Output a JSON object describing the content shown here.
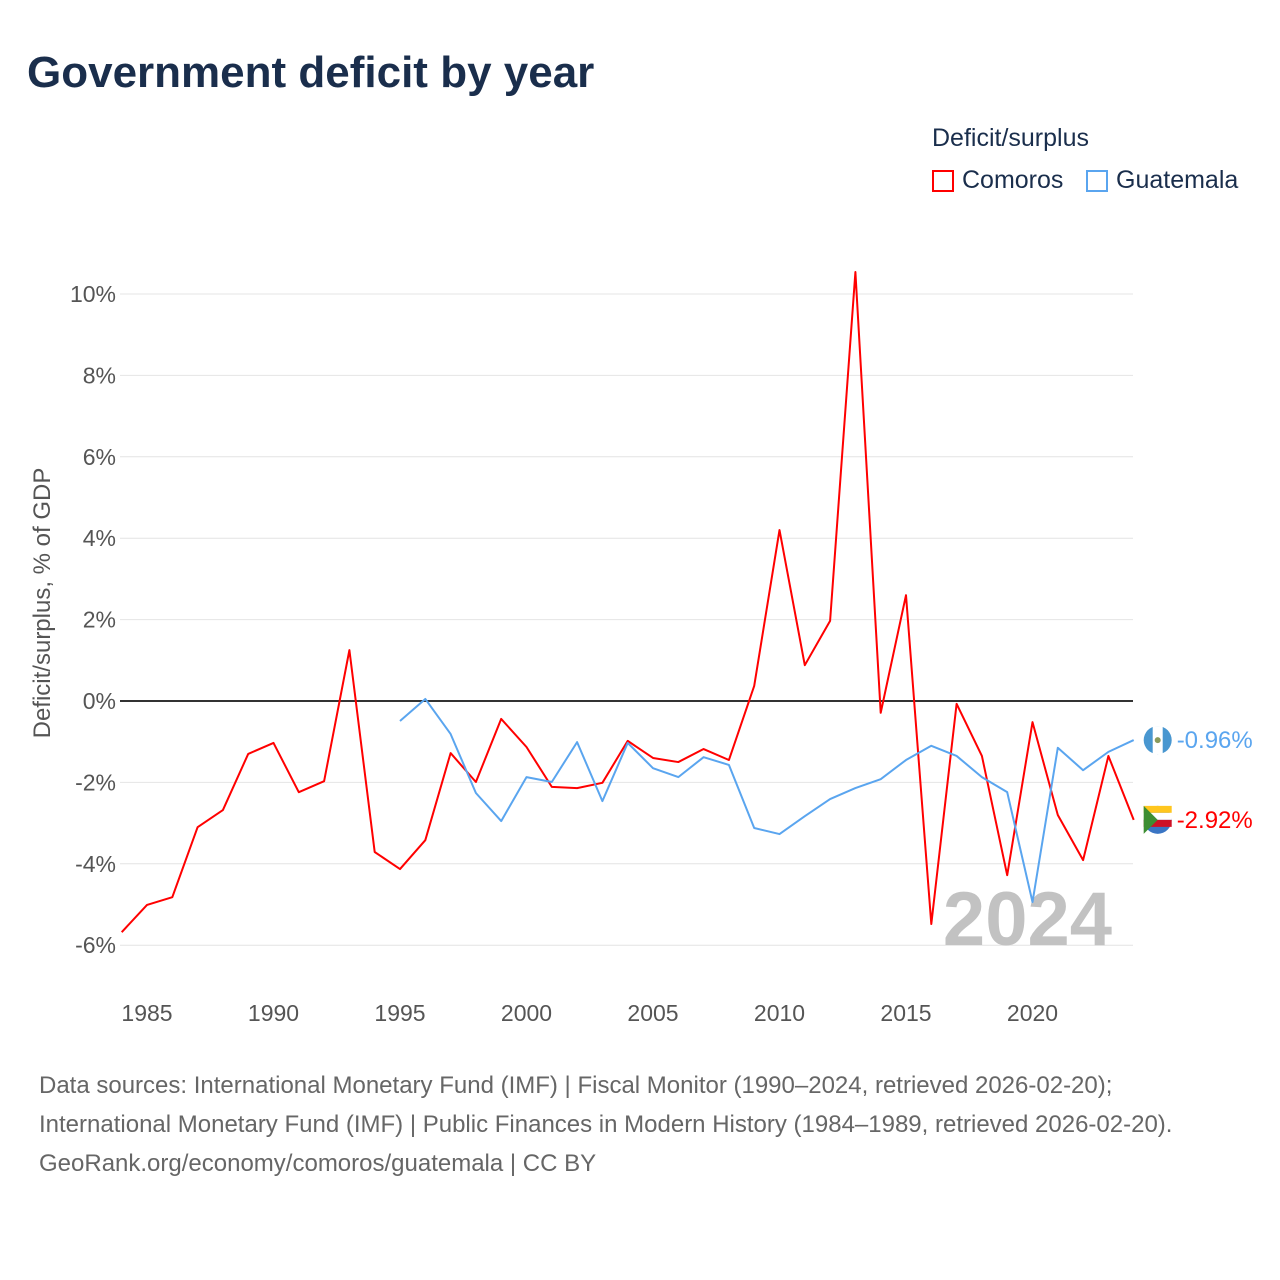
{
  "title": "Government deficit by year",
  "chart_data": {
    "type": "line",
    "title": "Government deficit by year",
    "ylabel": "Deficit/surplus, % of GDP",
    "xlabel": "",
    "legend_title": "Deficit/surplus",
    "legend_position": "top-right",
    "xlim": [
      1984,
      2024
    ],
    "ylim": [
      -7,
      11
    ],
    "x_ticks": [
      1985,
      1990,
      1995,
      2000,
      2005,
      2010,
      2015,
      2020
    ],
    "x_tick_labels": [
      "1985",
      "1990",
      "1995",
      "2000",
      "2005",
      "2010",
      "2015",
      "2020"
    ],
    "y_ticks": [
      -6,
      -4,
      -2,
      0,
      2,
      4,
      6,
      8,
      10
    ],
    "y_tick_labels": [
      "-6%",
      "-4%",
      "-2%",
      "0%",
      "2%",
      "4%",
      "6%",
      "8%",
      "10%"
    ],
    "grid": true,
    "watermark_year": "2024",
    "series": [
      {
        "name": "Comoros",
        "color": "#ff0000",
        "end_label": "-2.92%",
        "x": [
          1984,
          1985,
          1986,
          1987,
          1988,
          1989,
          1990,
          1991,
          1992,
          1993,
          1994,
          1995,
          1996,
          1997,
          1998,
          1999,
          2000,
          2001,
          2002,
          2003,
          2004,
          2005,
          2006,
          2007,
          2008,
          2009,
          2010,
          2011,
          2012,
          2013,
          2014,
          2015,
          2016,
          2017,
          2018,
          2019,
          2020,
          2021,
          2022,
          2023,
          2024
        ],
        "values": [
          -5.68,
          -5.01,
          -4.82,
          -3.1,
          -2.68,
          -1.3,
          -1.03,
          -2.24,
          -1.97,
          1.25,
          -3.71,
          -4.13,
          -3.42,
          -1.28,
          -1.99,
          -0.44,
          -1.13,
          -2.11,
          -2.14,
          -2.01,
          -0.98,
          -1.4,
          -1.5,
          -1.18,
          -1.45,
          0.37,
          4.2,
          0.88,
          1.97,
          10.54,
          -0.29,
          2.6,
          -5.48,
          -0.07,
          -1.35,
          -4.28,
          -0.52,
          -2.8,
          -3.91,
          -1.35,
          -2.92
        ]
      },
      {
        "name": "Guatemala",
        "color": "#5aa5ef",
        "end_label": "-0.96%",
        "x": [
          1995,
          1996,
          1997,
          1998,
          1999,
          2000,
          2001,
          2002,
          2003,
          2004,
          2005,
          2006,
          2007,
          2008,
          2009,
          2010,
          2011,
          2012,
          2013,
          2014,
          2015,
          2016,
          2017,
          2018,
          2019,
          2020,
          2021,
          2022,
          2023,
          2024
        ],
        "values": [
          -0.49,
          0.05,
          -0.81,
          -2.26,
          -2.95,
          -1.87,
          -1.99,
          -1.01,
          -2.46,
          -1.03,
          -1.65,
          -1.87,
          -1.38,
          -1.57,
          -3.12,
          -3.27,
          -2.83,
          -2.41,
          -2.14,
          -1.92,
          -1.45,
          -1.1,
          -1.35,
          -1.87,
          -2.24,
          -4.94,
          -1.15,
          -1.7,
          -1.25,
          -0.96
        ]
      }
    ]
  },
  "footer": {
    "sources": "Data sources: International Monetary Fund (IMF) | Fiscal Monitor (1990–2024, retrieved 2026-02-20); International Monetary Fund (IMF) | Public Finances in Modern History (1984–1989, retrieved 2026-02-20).",
    "credit": "GeoRank.org/economy/comoros/guatemala | CC BY"
  }
}
